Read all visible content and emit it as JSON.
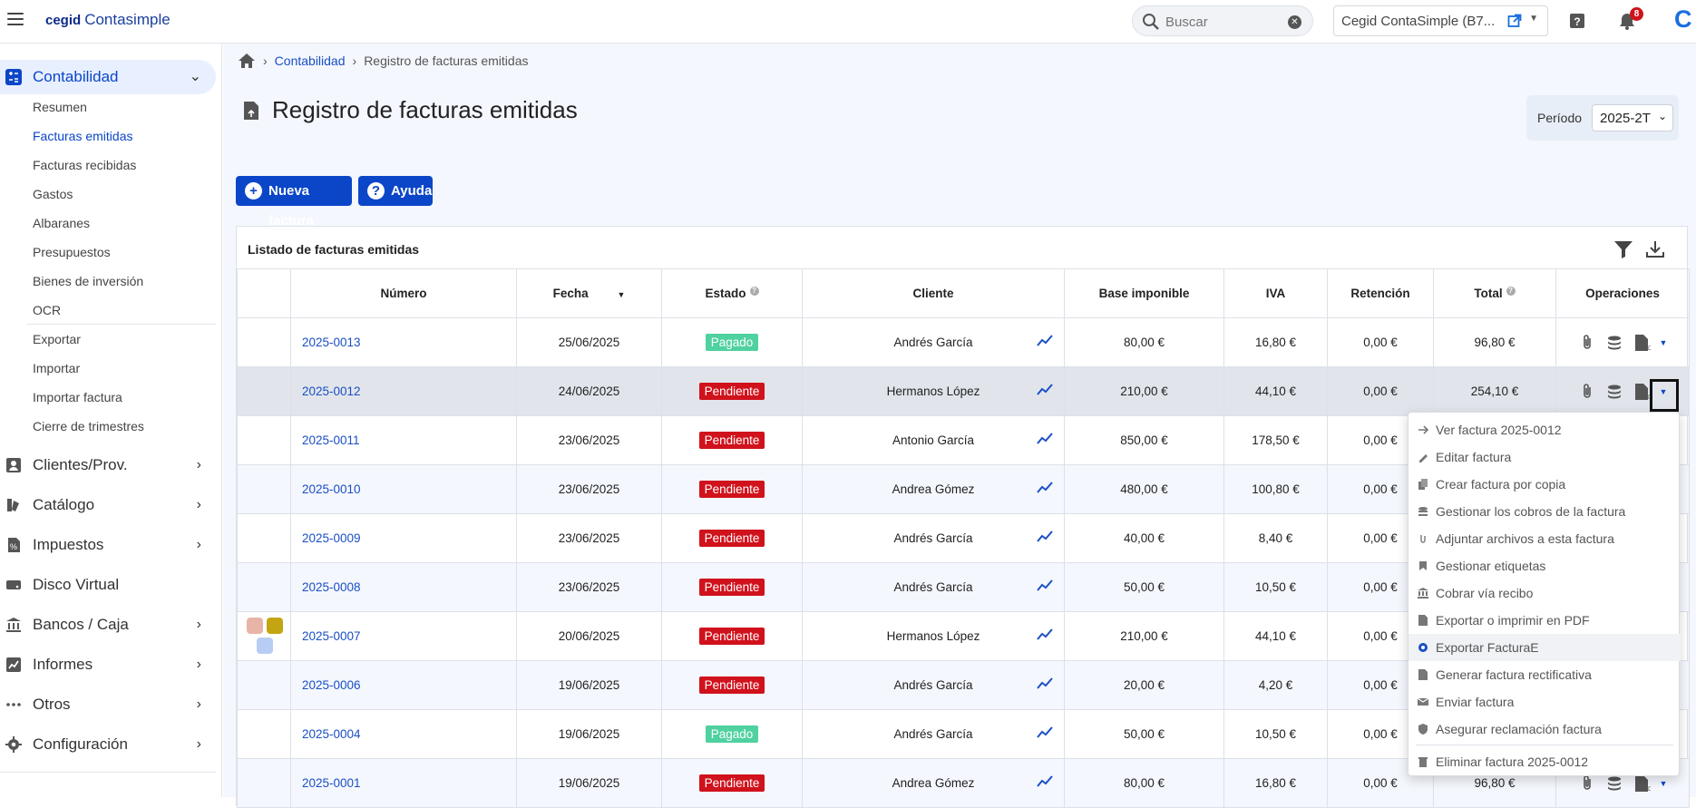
{
  "header": {
    "brand_bold": "cegid",
    "brand_name": "Contasimple",
    "search_placeholder": "Buscar",
    "company": "Cegid ContaSimple (B7...",
    "notifications_count": "8",
    "corner_logo": "C"
  },
  "sidebar": {
    "contabilidad": "Contabilidad",
    "sub_items": [
      "Resumen",
      "Facturas emitidas",
      "Facturas recibidas",
      "Gastos",
      "Albaranes",
      "Presupuestos",
      "Bienes de inversión",
      "OCR",
      "Exportar",
      "Importar",
      "Importar factura",
      "Cierre de trimestres"
    ],
    "sections": [
      "Clientes/Prov.",
      "Catálogo",
      "Impuestos",
      "Disco Virtual",
      "Bancos / Caja",
      "Informes",
      "Otros",
      "Configuración"
    ]
  },
  "breadcrumb": {
    "item1": "Contabilidad",
    "item2": "Registro de facturas emitidas"
  },
  "page": {
    "title": "Registro de facturas emitidas",
    "period_label": "Período",
    "period_value": "2025-2T",
    "new_invoice": "Nueva factura",
    "help": "Ayuda"
  },
  "table": {
    "panel_title": "Listado de facturas emitidas",
    "columns": [
      "Número",
      "Fecha",
      "Estado",
      "Cliente",
      "Base imponible",
      "IVA",
      "Retención",
      "Total",
      "Operaciones"
    ],
    "rows": [
      {
        "numero": "2025-0013",
        "fecha": "25/06/2025",
        "estado": "Pagado",
        "cliente": "Andrés García",
        "base": "80,00 €",
        "iva": "16,80 €",
        "ret": "0,00 €",
        "total": "96,80 €"
      },
      {
        "numero": "2025-0012",
        "fecha": "24/06/2025",
        "estado": "Pendiente",
        "cliente": "Hermanos López",
        "base": "210,00 €",
        "iva": "44,10 €",
        "ret": "0,00 €",
        "total": "254,10 €"
      },
      {
        "numero": "2025-0011",
        "fecha": "23/06/2025",
        "estado": "Pendiente",
        "cliente": "Antonio García",
        "base": "850,00 €",
        "iva": "178,50 €",
        "ret": "0,00 €",
        "total": ""
      },
      {
        "numero": "2025-0010",
        "fecha": "23/06/2025",
        "estado": "Pendiente",
        "cliente": "Andrea Gómez",
        "base": "480,00 €",
        "iva": "100,80 €",
        "ret": "0,00 €",
        "total": ""
      },
      {
        "numero": "2025-0009",
        "fecha": "23/06/2025",
        "estado": "Pendiente",
        "cliente": "Andrés García",
        "base": "40,00 €",
        "iva": "8,40 €",
        "ret": "0,00 €",
        "total": ""
      },
      {
        "numero": "2025-0008",
        "fecha": "23/06/2025",
        "estado": "Pendiente",
        "cliente": "Andrés García",
        "base": "50,00 €",
        "iva": "10,50 €",
        "ret": "0,00 €",
        "total": ""
      },
      {
        "numero": "2025-0007",
        "fecha": "20/06/2025",
        "estado": "Pendiente",
        "cliente": "Hermanos López",
        "base": "210,00 €",
        "iva": "44,10 €",
        "ret": "0,00 €",
        "total": ""
      },
      {
        "numero": "2025-0006",
        "fecha": "19/06/2025",
        "estado": "Pendiente",
        "cliente": "Andrés García",
        "base": "20,00 €",
        "iva": "4,20 €",
        "ret": "0,00 €",
        "total": ""
      },
      {
        "numero": "2025-0004",
        "fecha": "19/06/2025",
        "estado": "Pagado",
        "cliente": "Andrés García",
        "base": "50,00 €",
        "iva": "10,50 €",
        "ret": "0,00 €",
        "total": ""
      },
      {
        "numero": "2025-0001",
        "fecha": "19/06/2025",
        "estado": "Pendiente",
        "cliente": "Andrea Gómez",
        "base": "80,00 €",
        "iva": "16,80 €",
        "ret": "0,00 €",
        "total": "96,80 €"
      }
    ]
  },
  "menu": {
    "items": [
      "Ver factura 2025-0012",
      "Editar factura",
      "Crear factura por copia",
      "Gestionar los cobros de la factura",
      "Adjuntar archivos a esta factura",
      "Gestionar etiquetas",
      "Cobrar vía recibo",
      "Exportar o imprimir en PDF",
      "Exportar FacturaE",
      "Generar factura rectificativa",
      "Enviar factura",
      "Asegurar reclamación factura",
      "Eliminar factura 2025-0012"
    ]
  },
  "colors": {
    "accent": "#0b46c9",
    "paid": "#4fd1a0",
    "pending": "#d0121c",
    "tags": [
      "#e8b4a8",
      "#c3a512",
      "#b8cdf3"
    ]
  }
}
